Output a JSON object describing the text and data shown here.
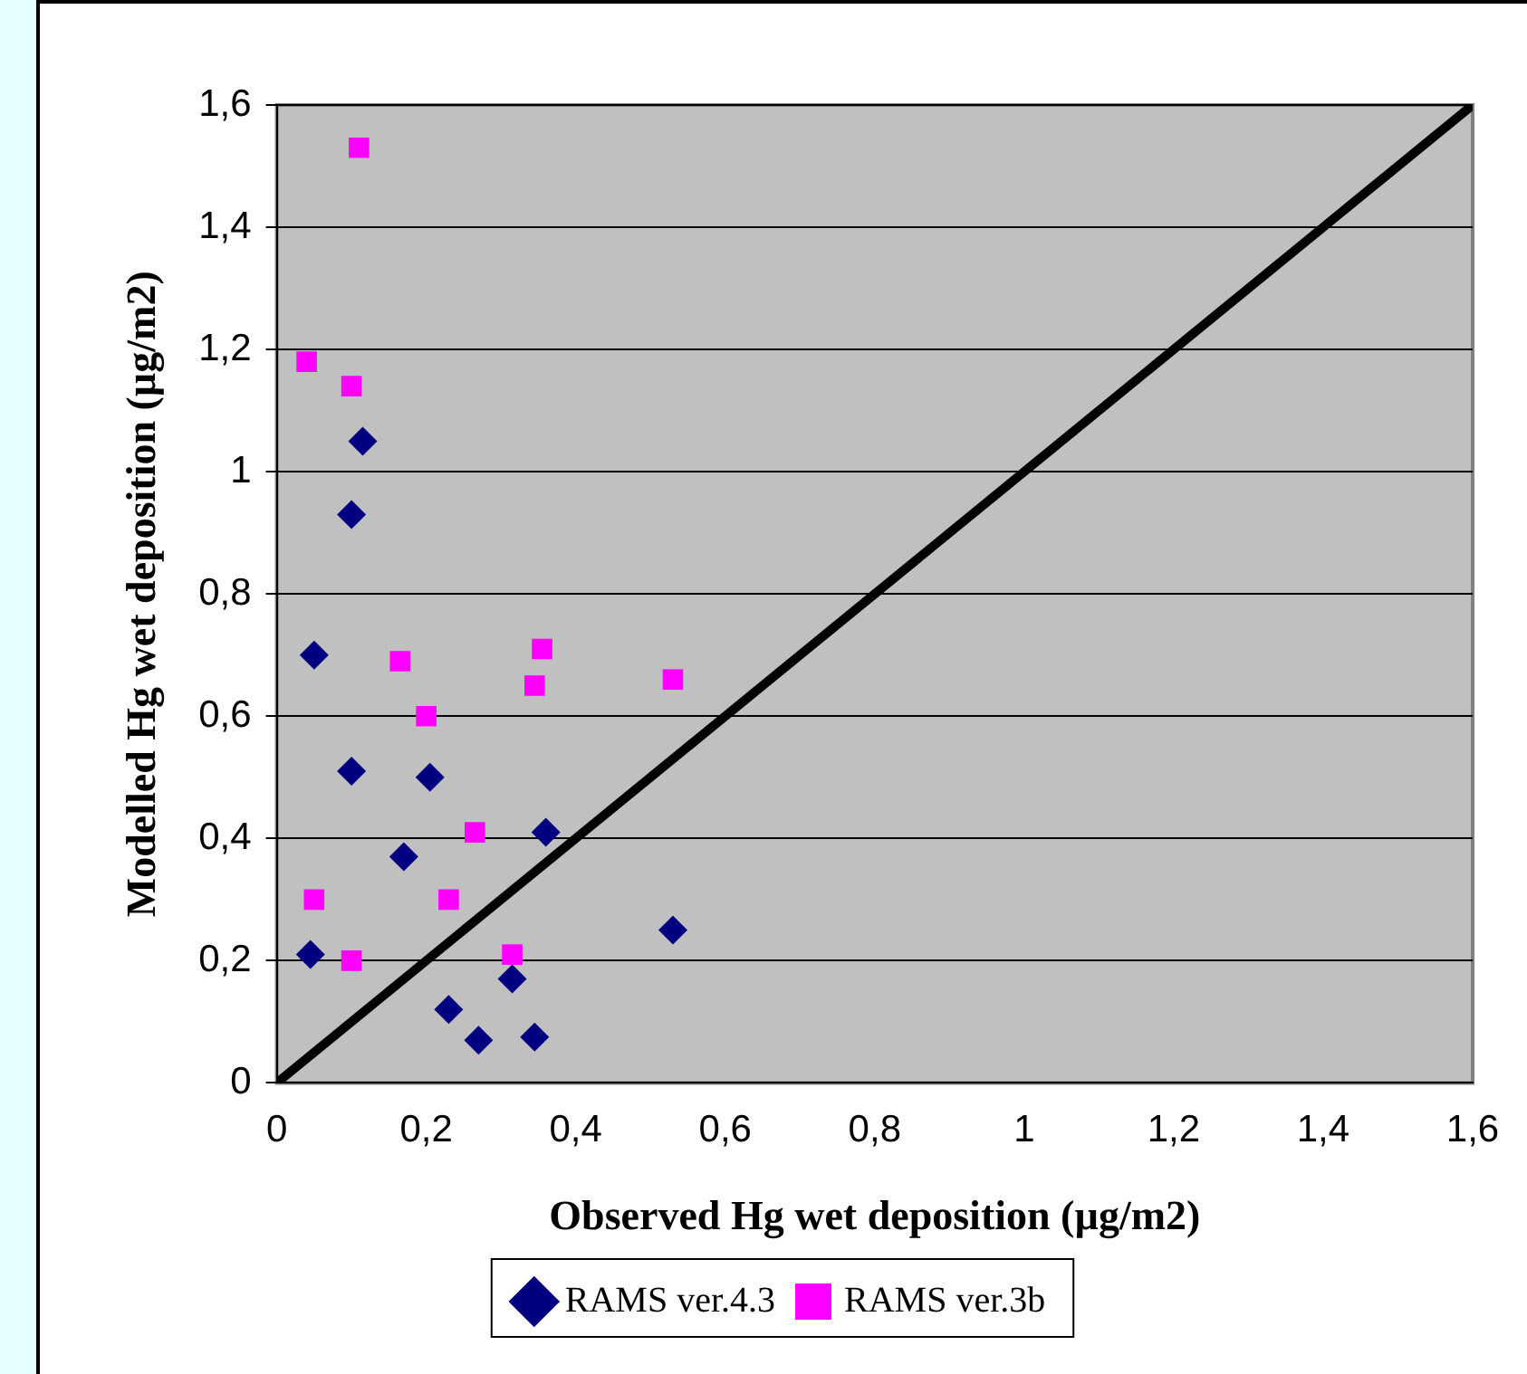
{
  "chart_data": {
    "type": "scatter",
    "xlabel": "Observed Hg wet deposition (µg/m2)",
    "ylabel": "Modelled Hg wet deposition (µg/m2)",
    "xlim": [
      0,
      1.6
    ],
    "ylim": [
      0,
      1.6
    ],
    "xticks": [
      0,
      {
        "value": 0.2,
        "label": "0,2"
      },
      {
        "value": 0.4,
        "label": "0,4"
      },
      {
        "value": 0.6,
        "label": "0,6"
      },
      {
        "value": 0.8,
        "label": "0,8"
      },
      1,
      {
        "value": 1.2,
        "label": "1,2"
      },
      {
        "value": 1.4,
        "label": "1,4"
      },
      {
        "value": 1.6,
        "label": "1,6"
      }
    ],
    "yticks": [
      0,
      {
        "value": 0.2,
        "label": "0,2"
      },
      {
        "value": 0.4,
        "label": "0,4"
      },
      {
        "value": 0.6,
        "label": "0,6"
      },
      {
        "value": 0.8,
        "label": "0,8"
      },
      1,
      {
        "value": 1.2,
        "label": "1,2"
      },
      {
        "value": 1.4,
        "label": "1,4"
      },
      {
        "value": 1.6,
        "label": "1,6"
      }
    ],
    "grid": "y",
    "legend": "bottom",
    "series": [
      {
        "name": "RAMS ver.4.3",
        "color": "#000080",
        "marker": "diamond",
        "x": [
          0.05,
          0.045,
          0.115,
          0.1,
          0.1,
          0.205,
          0.17,
          0.36,
          0.23,
          0.27,
          0.315,
          0.345,
          0.53
        ],
        "values": [
          0.7,
          0.21,
          1.05,
          0.93,
          0.51,
          0.5,
          0.37,
          0.41,
          0.12,
          0.07,
          0.17,
          0.075,
          0.25
        ]
      },
      {
        "name": "RAMS ver.3b",
        "color": "#ff00ff",
        "marker": "square",
        "x": [
          0.11,
          0.04,
          0.1,
          0.165,
          0.2,
          0.355,
          0.345,
          0.53,
          0.05,
          0.265,
          0.23,
          0.1,
          0.315
        ],
        "values": [
          1.53,
          1.18,
          1.14,
          0.69,
          0.6,
          0.71,
          0.65,
          0.66,
          0.3,
          0.41,
          0.3,
          0.2,
          0.21
        ]
      },
      {
        "type": "line",
        "color": "#000000",
        "marker": "none",
        "x": [
          0,
          1.6
        ],
        "values": [
          0,
          1.6
        ]
      }
    ]
  }
}
